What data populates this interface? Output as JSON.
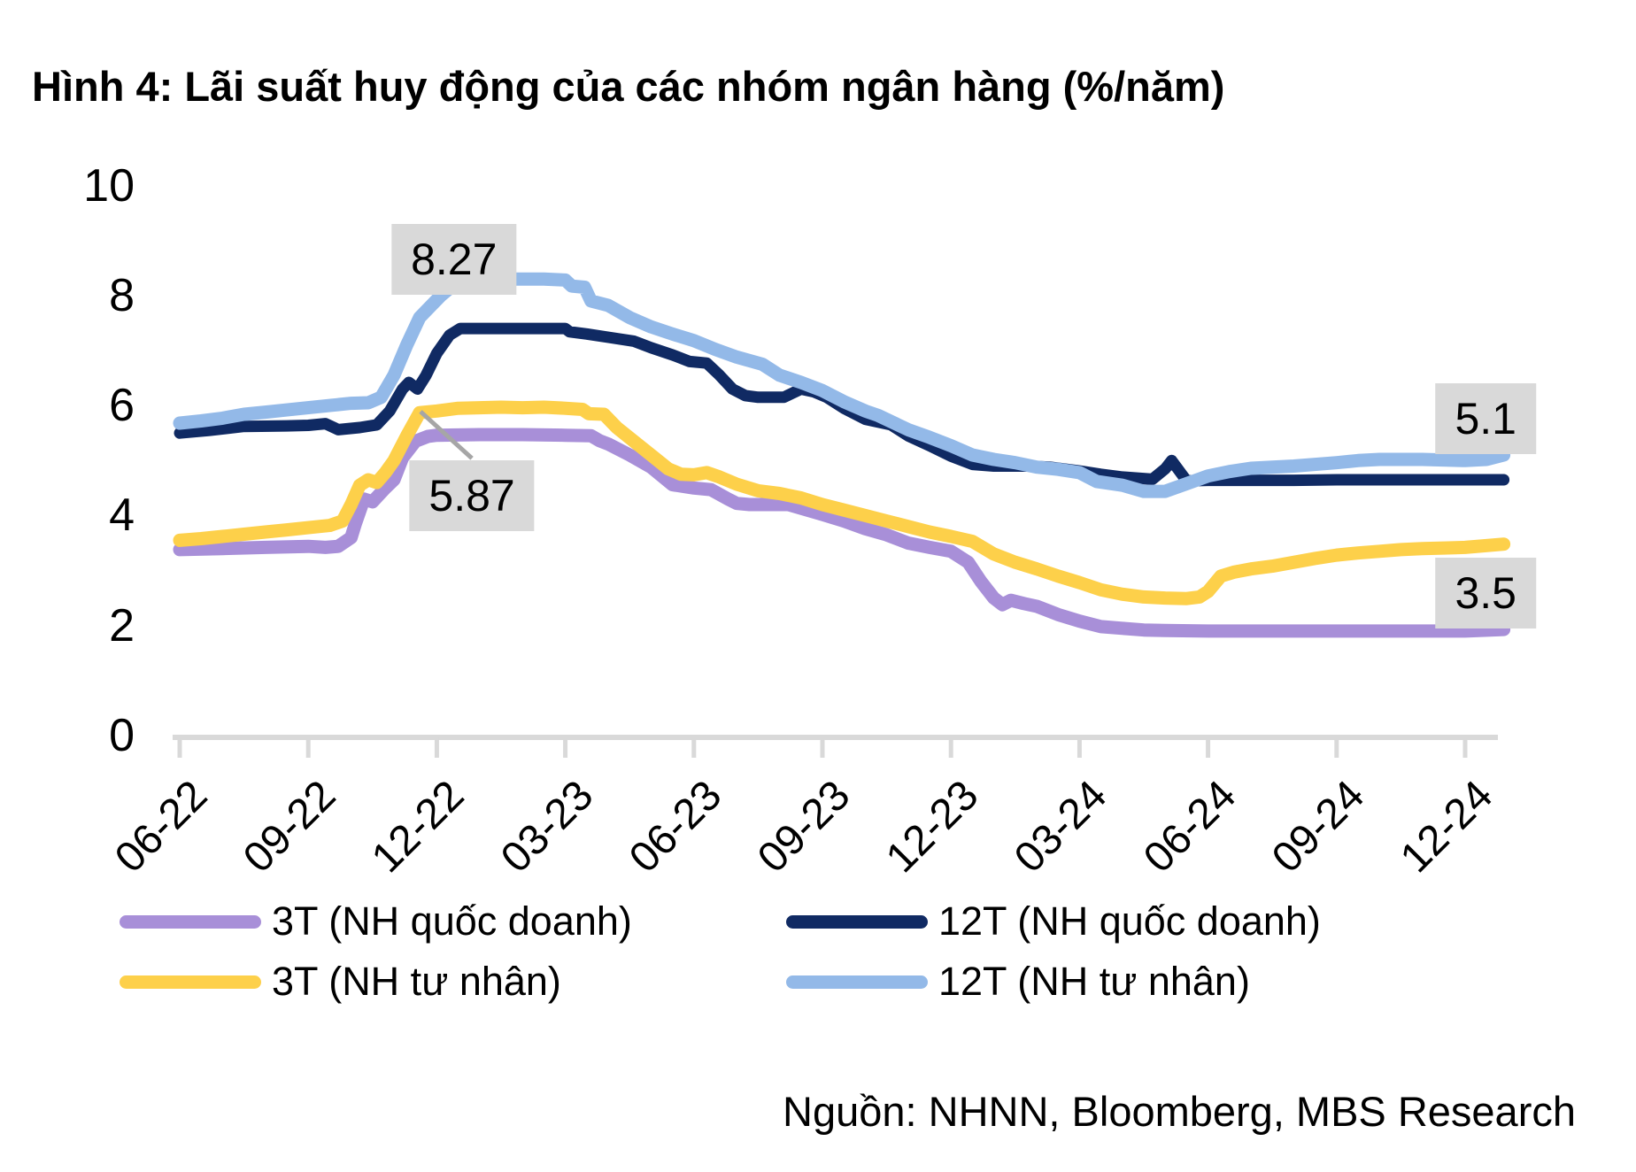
{
  "title": "Hình 4: Lãi suất huy động của các nhóm ngân hàng (%/năm)",
  "source": "Nguồn: NHNN, Bloomberg, MBS Research",
  "colors": {
    "purple": "#a88fd8",
    "yellow": "#fdd04a",
    "navy": "#102a63",
    "light_blue": "#93b9e8",
    "label_box": "#d9d9d9",
    "axis": "#d9d9d9",
    "leader": "#a6a6a6",
    "text": "#000000"
  },
  "legend": [
    {
      "label": "3T (NH quốc doanh)",
      "color": "#a88fd8",
      "column": 0,
      "row": 0
    },
    {
      "label": "3T (NH tư nhân)",
      "color": "#fdd04a",
      "column": 0,
      "row": 1
    },
    {
      "label": "12T (NH quốc doanh)",
      "color": "#102a63",
      "column": 1,
      "row": 0
    },
    {
      "label": "12T (NH tư nhân)",
      "color": "#93b9e8",
      "column": 1,
      "row": 1
    }
  ],
  "chart_data": {
    "type": "line",
    "title": "Hình 4: Lãi suất huy động của các nhóm ngân hàng (%/năm)",
    "xlabel": "",
    "ylabel": "%/năm",
    "ylim": [
      0,
      10
    ],
    "y_ticks": [
      0,
      2,
      4,
      6,
      8,
      10
    ],
    "grid": false,
    "legend_position": "bottom",
    "x_categories": [
      "06-22",
      "09-22",
      "12-22",
      "03-23",
      "06-23",
      "09-23",
      "12-23",
      "03-24",
      "06-24",
      "09-24",
      "12-24"
    ],
    "x_tick_month_offsets": [
      0,
      3,
      6,
      9,
      12,
      15,
      18,
      21,
      24,
      27,
      30
    ],
    "x_range_months": [
      0,
      30.9
    ],
    "series": [
      {
        "name": "3T (NH quốc doanh)",
        "color": "#a88fd8",
        "width": 15,
        "points": [
          [
            0,
            3.38
          ],
          [
            1,
            3.4
          ],
          [
            2,
            3.42
          ],
          [
            3,
            3.44
          ],
          [
            3.4,
            3.42
          ],
          [
            3.7,
            3.44
          ],
          [
            4,
            3.6
          ],
          [
            4.1,
            3.85
          ],
          [
            4.3,
            4.3
          ],
          [
            4.5,
            4.25
          ],
          [
            4.8,
            4.5
          ],
          [
            5,
            4.65
          ],
          [
            5.2,
            5.05
          ],
          [
            5.5,
            5.35
          ],
          [
            5.8,
            5.44
          ],
          [
            6,
            5.46
          ],
          [
            7,
            5.47
          ],
          [
            8,
            5.47
          ],
          [
            9,
            5.46
          ],
          [
            9.6,
            5.45
          ],
          [
            9.8,
            5.36
          ],
          [
            10,
            5.3
          ],
          [
            10.5,
            5.1
          ],
          [
            11,
            4.88
          ],
          [
            11.5,
            4.56
          ],
          [
            12,
            4.5
          ],
          [
            12.4,
            4.47
          ],
          [
            12.8,
            4.3
          ],
          [
            13,
            4.22
          ],
          [
            13.3,
            4.2
          ],
          [
            14.2,
            4.2
          ],
          [
            15,
            4.02
          ],
          [
            15.5,
            3.9
          ],
          [
            16,
            3.76
          ],
          [
            16.5,
            3.65
          ],
          [
            17,
            3.5
          ],
          [
            17.5,
            3.42
          ],
          [
            18,
            3.35
          ],
          [
            18.4,
            3.15
          ],
          [
            18.7,
            2.8
          ],
          [
            19,
            2.5
          ],
          [
            19.2,
            2.38
          ],
          [
            19.4,
            2.46
          ],
          [
            19.7,
            2.4
          ],
          [
            20,
            2.35
          ],
          [
            20.5,
            2.2
          ],
          [
            21,
            2.08
          ],
          [
            21.5,
            1.98
          ],
          [
            22,
            1.95
          ],
          [
            22.5,
            1.92
          ],
          [
            23,
            1.91
          ],
          [
            24,
            1.9
          ],
          [
            25,
            1.9
          ],
          [
            26,
            1.9
          ],
          [
            27,
            1.9
          ],
          [
            28,
            1.9
          ],
          [
            29,
            1.9
          ],
          [
            30,
            1.9
          ],
          [
            30.9,
            1.93
          ]
        ]
      },
      {
        "name": "3T (NH tư nhân)",
        "color": "#fdd04a",
        "width": 15,
        "points": [
          [
            0,
            3.55
          ],
          [
            0.5,
            3.58
          ],
          [
            1,
            3.62
          ],
          [
            1.5,
            3.66
          ],
          [
            2,
            3.7
          ],
          [
            2.5,
            3.74
          ],
          [
            3,
            3.78
          ],
          [
            3.5,
            3.82
          ],
          [
            3.8,
            3.9
          ],
          [
            4,
            4.2
          ],
          [
            4.2,
            4.55
          ],
          [
            4.4,
            4.65
          ],
          [
            4.6,
            4.6
          ],
          [
            4.8,
            4.78
          ],
          [
            5,
            5.0
          ],
          [
            5.3,
            5.45
          ],
          [
            5.6,
            5.87
          ],
          [
            6,
            5.9
          ],
          [
            6.5,
            5.95
          ],
          [
            7,
            5.96
          ],
          [
            7.5,
            5.97
          ],
          [
            8,
            5.96
          ],
          [
            8.5,
            5.97
          ],
          [
            9,
            5.95
          ],
          [
            9.4,
            5.93
          ],
          [
            9.55,
            5.85
          ],
          [
            9.9,
            5.84
          ],
          [
            10.2,
            5.6
          ],
          [
            10.6,
            5.35
          ],
          [
            11,
            5.1
          ],
          [
            11.4,
            4.85
          ],
          [
            11.7,
            4.75
          ],
          [
            12,
            4.74
          ],
          [
            12.3,
            4.78
          ],
          [
            12.6,
            4.7
          ],
          [
            13,
            4.57
          ],
          [
            13.5,
            4.45
          ],
          [
            14,
            4.4
          ],
          [
            14.5,
            4.32
          ],
          [
            15,
            4.2
          ],
          [
            15.5,
            4.1
          ],
          [
            16,
            4.0
          ],
          [
            16.5,
            3.9
          ],
          [
            17,
            3.8
          ],
          [
            17.5,
            3.7
          ],
          [
            18,
            3.62
          ],
          [
            18.5,
            3.53
          ],
          [
            19,
            3.3
          ],
          [
            19.5,
            3.15
          ],
          [
            20,
            3.03
          ],
          [
            20.5,
            2.9
          ],
          [
            21,
            2.78
          ],
          [
            21.5,
            2.65
          ],
          [
            22,
            2.57
          ],
          [
            22.5,
            2.52
          ],
          [
            23,
            2.5
          ],
          [
            23.5,
            2.49
          ],
          [
            23.8,
            2.52
          ],
          [
            24,
            2.62
          ],
          [
            24.3,
            2.9
          ],
          [
            24.6,
            2.97
          ],
          [
            25,
            3.03
          ],
          [
            25.5,
            3.08
          ],
          [
            26,
            3.15
          ],
          [
            26.5,
            3.22
          ],
          [
            27,
            3.28
          ],
          [
            27.5,
            3.32
          ],
          [
            28,
            3.35
          ],
          [
            28.5,
            3.38
          ],
          [
            29,
            3.4
          ],
          [
            29.5,
            3.41
          ],
          [
            30,
            3.42
          ],
          [
            30.9,
            3.48
          ]
        ]
      },
      {
        "name": "12T (NH quốc doanh)",
        "color": "#102a63",
        "width": 13,
        "points": [
          [
            0,
            5.5
          ],
          [
            0.7,
            5.55
          ],
          [
            1.5,
            5.62
          ],
          [
            2.5,
            5.63
          ],
          [
            3,
            5.64
          ],
          [
            3.4,
            5.67
          ],
          [
            3.7,
            5.56
          ],
          [
            4.2,
            5.6
          ],
          [
            4.6,
            5.65
          ],
          [
            4.9,
            5.9
          ],
          [
            5.2,
            6.3
          ],
          [
            5.35,
            6.42
          ],
          [
            5.55,
            6.3
          ],
          [
            5.75,
            6.55
          ],
          [
            6,
            6.95
          ],
          [
            6.3,
            7.28
          ],
          [
            6.55,
            7.4
          ],
          [
            7,
            7.4
          ],
          [
            8,
            7.4
          ],
          [
            9,
            7.4
          ],
          [
            9.1,
            7.34
          ],
          [
            9.5,
            7.3
          ],
          [
            10,
            7.24
          ],
          [
            10.6,
            7.17
          ],
          [
            11,
            7.05
          ],
          [
            11.5,
            6.92
          ],
          [
            11.9,
            6.8
          ],
          [
            12.3,
            6.77
          ],
          [
            12.6,
            6.55
          ],
          [
            12.9,
            6.3
          ],
          [
            13.2,
            6.18
          ],
          [
            13.5,
            6.15
          ],
          [
            14.1,
            6.15
          ],
          [
            14.5,
            6.3
          ],
          [
            14.8,
            6.25
          ],
          [
            15.1,
            6.15
          ],
          [
            15.5,
            5.95
          ],
          [
            16,
            5.75
          ],
          [
            16.6,
            5.65
          ],
          [
            17,
            5.45
          ],
          [
            17.5,
            5.27
          ],
          [
            18,
            5.08
          ],
          [
            18.5,
            4.93
          ],
          [
            19,
            4.9
          ],
          [
            19.8,
            4.9
          ],
          [
            20.3,
            4.88
          ],
          [
            21,
            4.81
          ],
          [
            21.5,
            4.75
          ],
          [
            22,
            4.7
          ],
          [
            22.7,
            4.66
          ],
          [
            23,
            4.85
          ],
          [
            23.15,
            5.0
          ],
          [
            23.5,
            4.63
          ],
          [
            24,
            4.64
          ],
          [
            25,
            4.64
          ],
          [
            26,
            4.64
          ],
          [
            27,
            4.65
          ],
          [
            28,
            4.65
          ],
          [
            29,
            4.65
          ],
          [
            30,
            4.65
          ],
          [
            30.9,
            4.65
          ]
        ]
      },
      {
        "name": "12T (NH tư nhân)",
        "color": "#93b9e8",
        "width": 15,
        "points": [
          [
            0,
            5.68
          ],
          [
            0.5,
            5.72
          ],
          [
            1,
            5.77
          ],
          [
            1.5,
            5.84
          ],
          [
            2,
            5.88
          ],
          [
            2.5,
            5.92
          ],
          [
            3,
            5.96
          ],
          [
            3.5,
            6.0
          ],
          [
            4,
            6.04
          ],
          [
            4.4,
            6.05
          ],
          [
            4.7,
            6.15
          ],
          [
            5,
            6.55
          ],
          [
            5.3,
            7.1
          ],
          [
            5.6,
            7.6
          ],
          [
            5.85,
            7.8
          ],
          [
            6.1,
            8.0
          ],
          [
            6.4,
            8.2
          ],
          [
            6.7,
            8.27
          ],
          [
            7.2,
            8.27
          ],
          [
            7.6,
            8.3
          ],
          [
            8.5,
            8.3
          ],
          [
            9.0,
            8.28
          ],
          [
            9.15,
            8.17
          ],
          [
            9.45,
            8.15
          ],
          [
            9.6,
            7.9
          ],
          [
            10,
            7.82
          ],
          [
            10.5,
            7.6
          ],
          [
            11,
            7.43
          ],
          [
            11.5,
            7.3
          ],
          [
            12,
            7.18
          ],
          [
            12.5,
            7.02
          ],
          [
            13,
            6.88
          ],
          [
            13.6,
            6.75
          ],
          [
            14,
            6.55
          ],
          [
            14.5,
            6.42
          ],
          [
            15,
            6.27
          ],
          [
            15.5,
            6.07
          ],
          [
            16,
            5.9
          ],
          [
            16.3,
            5.82
          ],
          [
            17,
            5.56
          ],
          [
            17.5,
            5.42
          ],
          [
            18,
            5.27
          ],
          [
            18.5,
            5.1
          ],
          [
            19,
            5.02
          ],
          [
            19.5,
            4.96
          ],
          [
            20,
            4.88
          ],
          [
            20.5,
            4.84
          ],
          [
            21,
            4.78
          ],
          [
            21.4,
            4.62
          ],
          [
            22,
            4.55
          ],
          [
            22.5,
            4.44
          ],
          [
            23,
            4.44
          ],
          [
            23.5,
            4.58
          ],
          [
            24,
            4.72
          ],
          [
            24.5,
            4.8
          ],
          [
            25,
            4.86
          ],
          [
            26,
            4.9
          ],
          [
            27,
            4.96
          ],
          [
            27.5,
            5.0
          ],
          [
            28,
            5.02
          ],
          [
            29,
            5.02
          ],
          [
            30,
            5.0
          ],
          [
            30.5,
            5.02
          ],
          [
            30.9,
            5.1
          ]
        ]
      }
    ],
    "annotations": [
      {
        "text": "8.27",
        "m": 6.4,
        "v": 8.66
      },
      {
        "text": "5.87",
        "m": 6.82,
        "v": 4.36
      },
      {
        "text": "5.1",
        "m": 30.48,
        "v": 5.76
      },
      {
        "text": "3.5",
        "m": 30.48,
        "v": 2.59
      }
    ],
    "leader_line": {
      "from_m": 5.62,
      "from_v": 5.89,
      "to_m": 6.82,
      "to_v": 5.04
    }
  }
}
